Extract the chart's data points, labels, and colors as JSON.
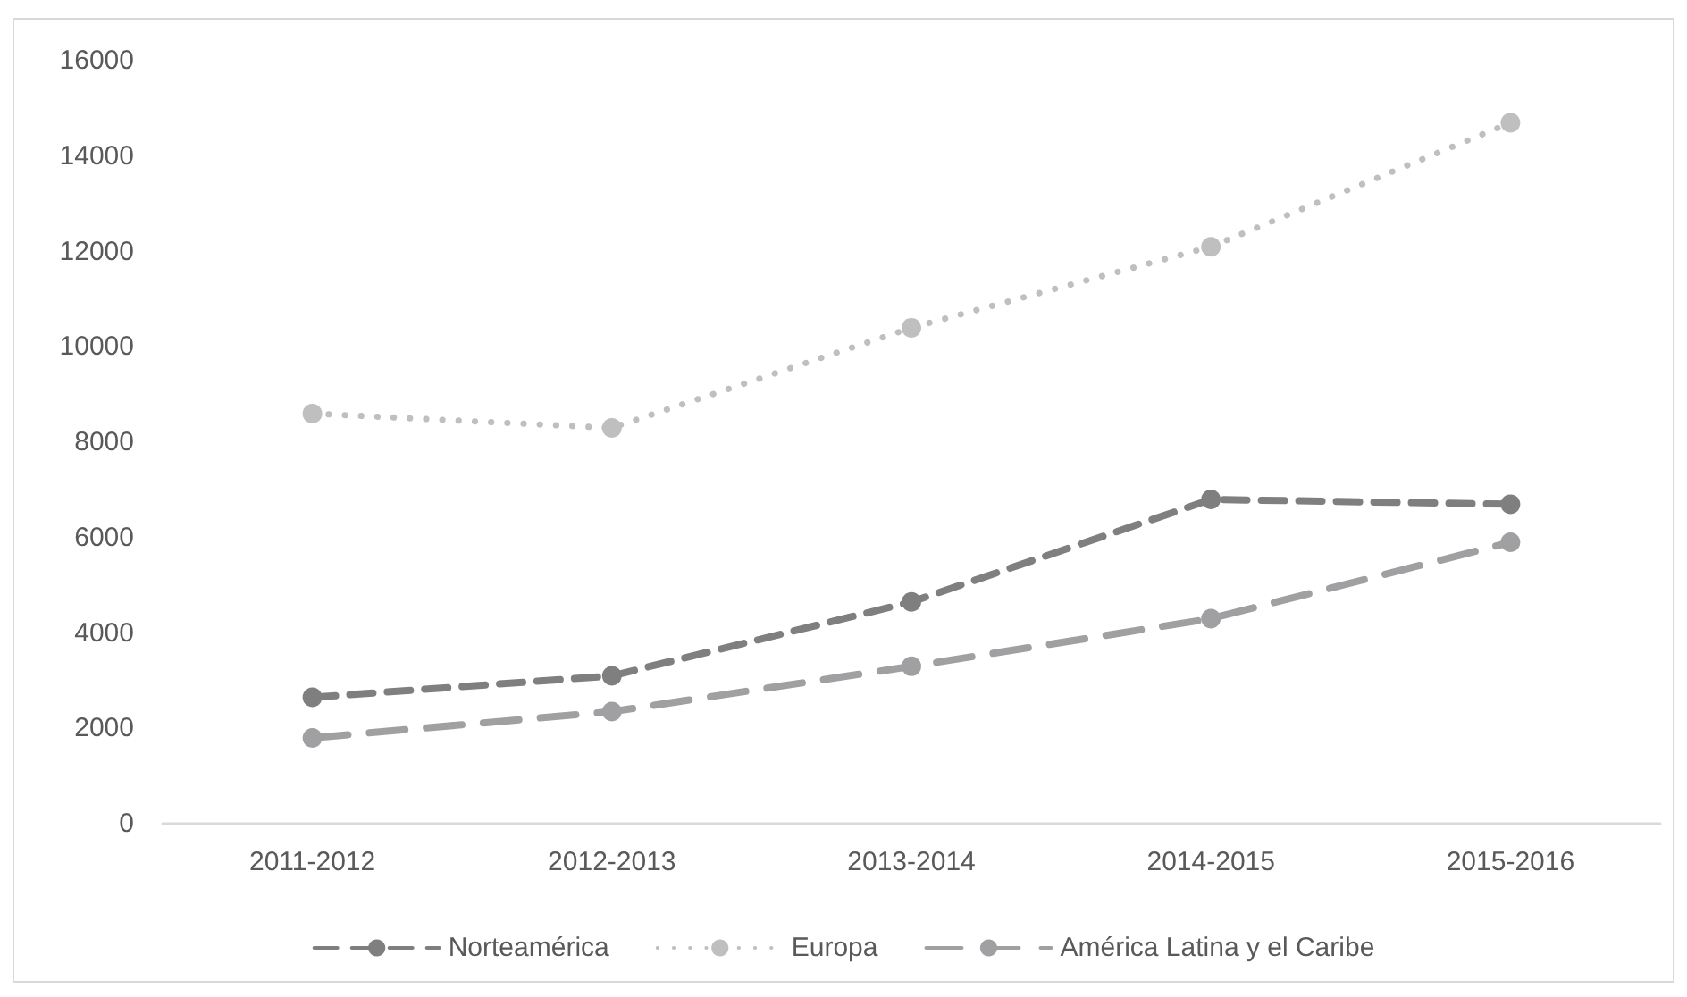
{
  "chart_data": {
    "type": "line",
    "categories": [
      "2011-2012",
      "2012-2013",
      "2013-2014",
      "2014-2015",
      "2015-2016"
    ],
    "series": [
      {
        "name": "Norteamérica",
        "color": "#7f7f80",
        "line_style": "dashed",
        "values": [
          2650,
          3100,
          4650,
          6800,
          6700
        ]
      },
      {
        "name": "Europa",
        "color": "#bfbfc0",
        "line_style": "dotted",
        "values": [
          8600,
          8300,
          10400,
          12100,
          14700
        ]
      },
      {
        "name": "América Latina y el Caribe",
        "color": "#a0a0a2",
        "line_style": "dashed",
        "values": [
          1800,
          2350,
          3300,
          4300,
          5900
        ]
      }
    ],
    "ylim": [
      0,
      16000
    ],
    "yticks": [
      0,
      2000,
      4000,
      6000,
      8000,
      10000,
      12000,
      14000,
      16000
    ],
    "grid": false,
    "legend": "bottom",
    "marker": "circle"
  }
}
